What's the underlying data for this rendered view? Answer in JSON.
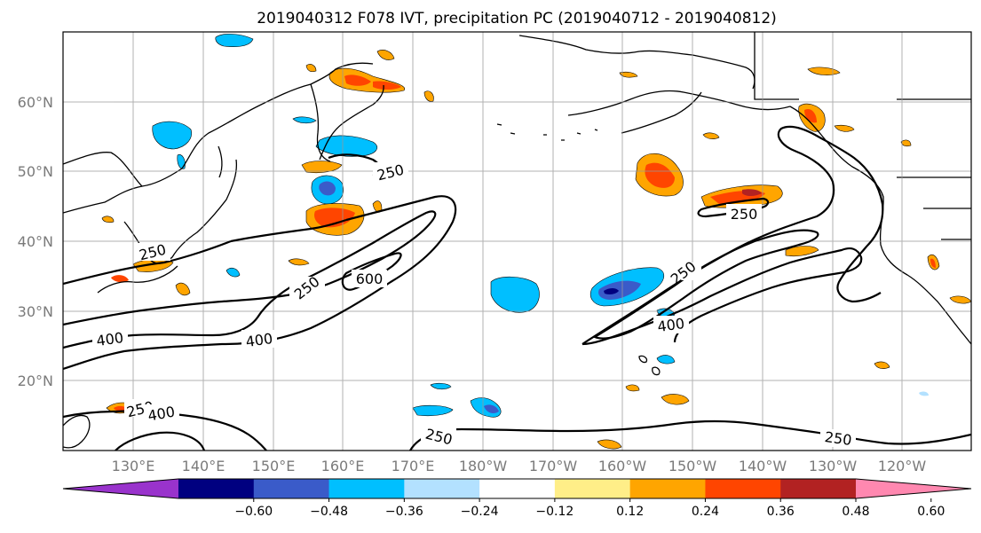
{
  "title": "2019040312 F078 IVT, precipitation PC (2019040712 - 2019040812)",
  "map": {
    "lon_ticks": [
      "130°E",
      "140°E",
      "150°E",
      "160°E",
      "170°E",
      "180°W",
      "170°W",
      "160°W",
      "150°W",
      "140°W",
      "130°W",
      "120°W"
    ],
    "lat_ticks": [
      "60°N",
      "50°N",
      "40°N",
      "30°N",
      "20°N"
    ],
    "ivt_contour_labels": [
      "250",
      "250",
      "250",
      "250",
      "250",
      "250",
      "250",
      "600",
      "400",
      "400",
      "400",
      "400"
    ]
  },
  "colorbar": {
    "ticks": [
      "−0.60",
      "−0.48",
      "−0.36",
      "−0.24",
      "−0.12",
      "0.12",
      "0.24",
      "0.36",
      "0.48",
      "0.60"
    ],
    "colors": [
      "#9933cc",
      "#000080",
      "#3a5bc9",
      "#00bfff",
      "#b3e1ff",
      "#ffffff",
      "#ffee88",
      "#ffa500",
      "#ff4500",
      "#b22222",
      "#ff88b0"
    ]
  },
  "colors": {
    "contour": "#000000",
    "grid": "#999999",
    "coast": "#000000"
  }
}
